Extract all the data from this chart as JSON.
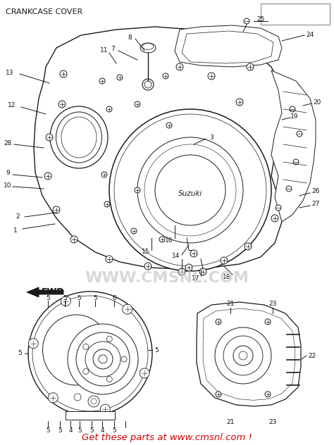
{
  "title": "CRANKCASE COVER",
  "bg_color": "#ffffff",
  "line_color": "#1a1a1a",
  "watermark_text": "WWW.CMSNL.COM",
  "watermark_color": "#cccccc",
  "bottom_text": "Get these parts at www.cmsnl.com !",
  "bottom_color": "#cc0000",
  "fig_width": 4.74,
  "fig_height": 6.32,
  "dpi": 100
}
